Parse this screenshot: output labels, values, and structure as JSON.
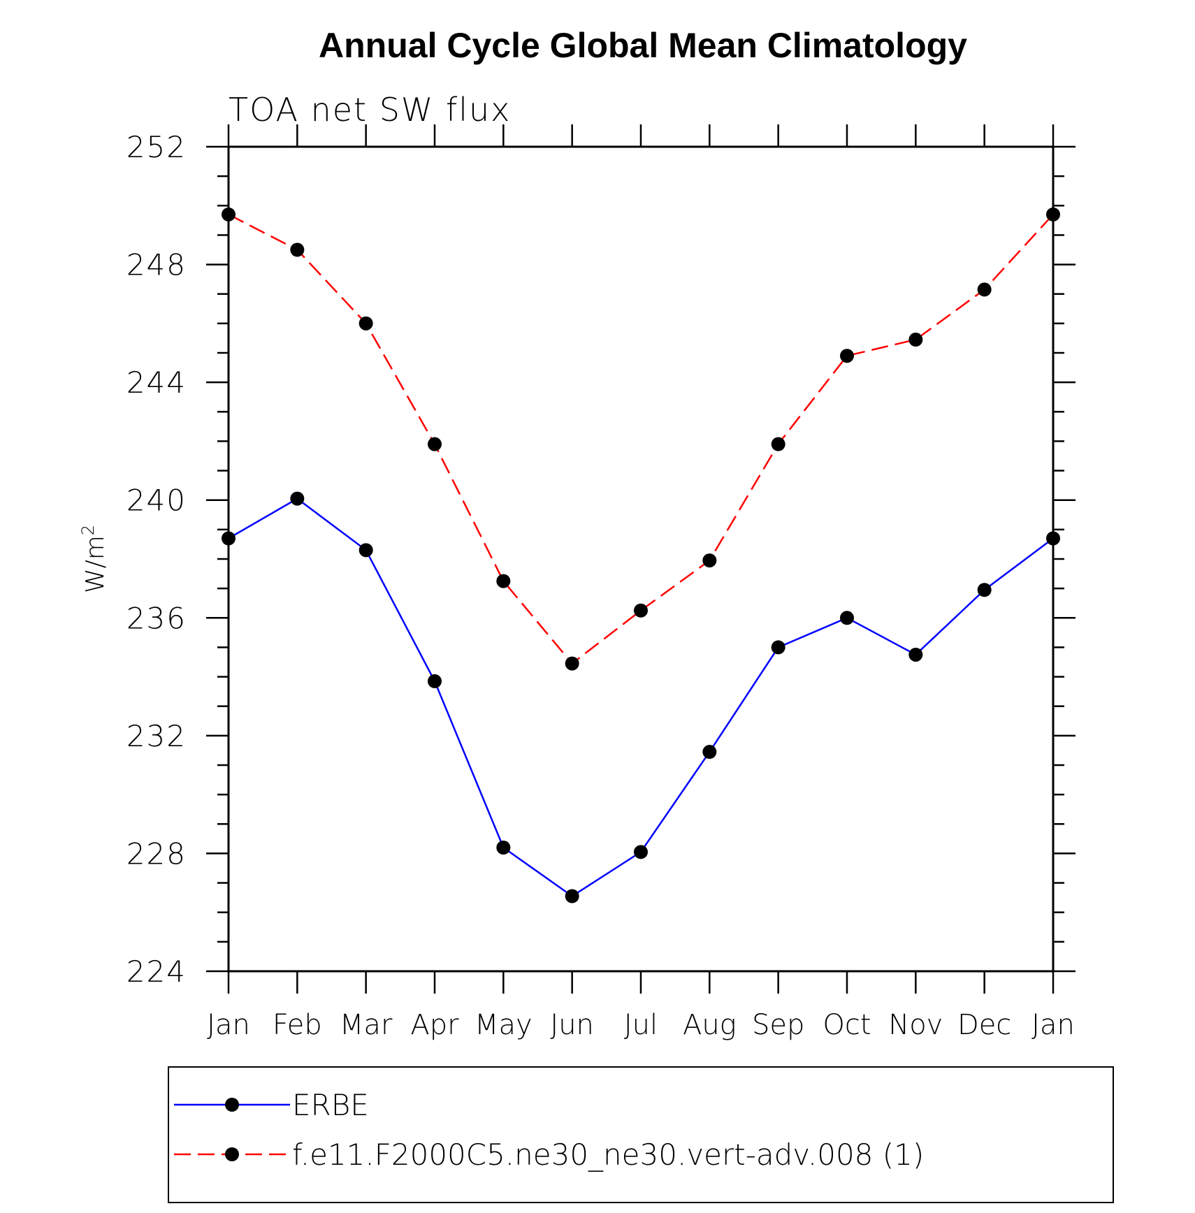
{
  "chart_data": {
    "type": "line",
    "title": "Annual Cycle Global Mean Climatology",
    "subtitle": "TOA net SW flux",
    "ylabel": "W/m",
    "ylabel_superscript": "2",
    "xlabel": "",
    "categories": [
      "Jan",
      "Feb",
      "Mar",
      "Apr",
      "May",
      "Jun",
      "Jul",
      "Aug",
      "Sep",
      "Oct",
      "Nov",
      "Dec",
      "Jan"
    ],
    "ylim": [
      224,
      252
    ],
    "yticks": [
      224,
      228,
      232,
      236,
      240,
      244,
      248,
      252
    ],
    "y_minor_step": 1,
    "grid": false,
    "legend_position": "bottom",
    "series": [
      {
        "name": "ERBE",
        "color": "#0000ff",
        "line_style": "solid",
        "marker": "filled-circle",
        "values": [
          238.7,
          240.05,
          238.3,
          233.85,
          228.2,
          226.55,
          228.05,
          231.45,
          235.0,
          236.0,
          234.75,
          236.95,
          238.7
        ]
      },
      {
        "name": "f.e11.F2000C5.ne30_ne30.vert-adv.008 (1)",
        "color": "#ff0000",
        "line_style": "dashed",
        "marker": "filled-circle",
        "values": [
          249.7,
          248.5,
          246.0,
          241.9,
          237.25,
          234.45,
          236.25,
          237.95,
          241.9,
          244.9,
          245.45,
          247.15,
          249.7
        ]
      }
    ]
  }
}
